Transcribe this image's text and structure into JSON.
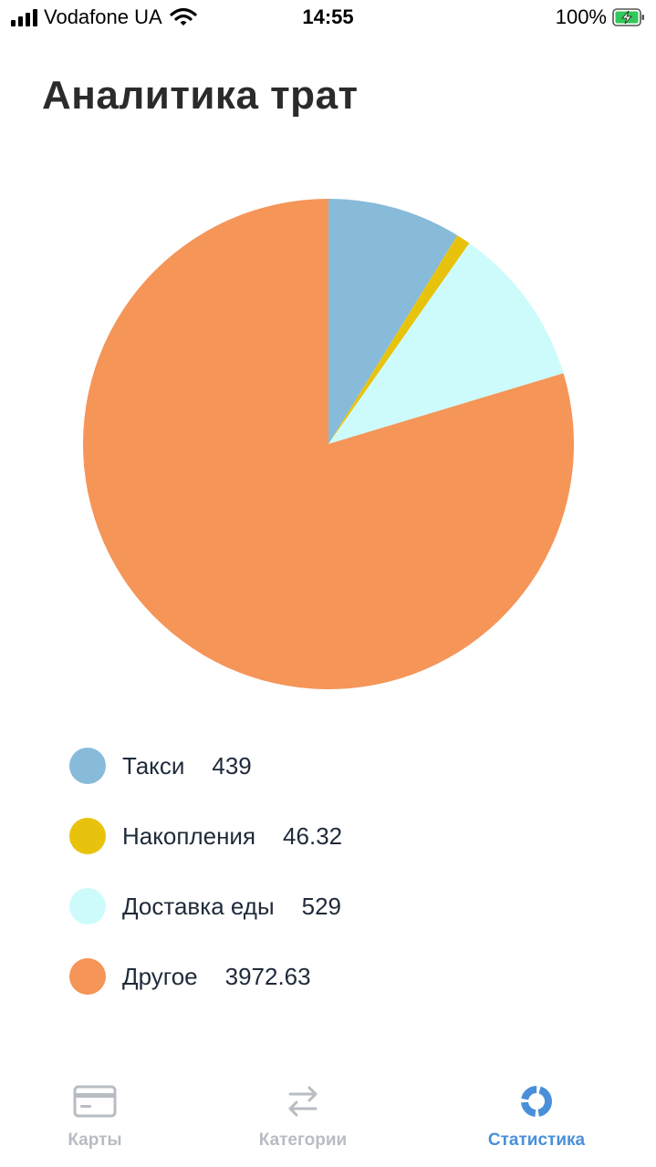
{
  "status_bar": {
    "carrier": "Vodafone UA",
    "time": "14:55",
    "battery": "100%"
  },
  "page": {
    "title": "Аналитика трат"
  },
  "chart_data": {
    "type": "pie",
    "title": "",
    "slices": [
      {
        "label": "Такси",
        "value": 439,
        "value_text": "439",
        "color": "#87bbd9"
      },
      {
        "label": "Накопления",
        "value": 46.32,
        "value_text": "46.32",
        "color": "#e8c30e"
      },
      {
        "label": "Доставка еды",
        "value": 529,
        "value_text": "529",
        "color": "#cdfbfb"
      },
      {
        "label": "Другое",
        "value": 3972.63,
        "value_text": "3972.63",
        "color": "#f59558"
      }
    ]
  },
  "tab_bar": {
    "tabs": [
      {
        "label": "Карты",
        "icon": "card-icon",
        "active": false
      },
      {
        "label": "Категории",
        "icon": "swap-arrows-icon",
        "active": false
      },
      {
        "label": "Статистика",
        "icon": "pie-stats-icon",
        "active": true
      }
    ],
    "active_color": "#4a90d9",
    "inactive_color": "#b8bcc3"
  }
}
